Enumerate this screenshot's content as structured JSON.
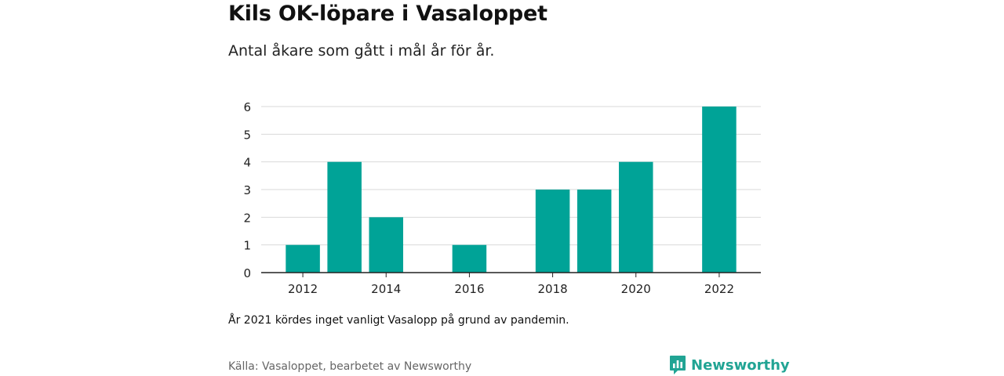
{
  "header": {
    "title": "Kils OK-löpare i Vasaloppet",
    "subtitle": "Antal åkare som gått i mål år för år."
  },
  "footer": {
    "note": "År 2021 kördes inget vanligt Vasalopp på grund av pandemin.",
    "source": "Källa: Vasaloppet, bearbetet av Newsworthy",
    "brand": "Newsworthy",
    "brand_icon": "newsworthy-logo-icon"
  },
  "colors": {
    "bar": "#00a397",
    "grid": "#d9d9d9",
    "axis": "#222222",
    "brand": "#21a494"
  },
  "chart_data": {
    "type": "bar",
    "title": "Kils OK-löpare i Vasaloppet",
    "subtitle": "Antal åkare som gått i mål år för år.",
    "x": [
      2012,
      2013,
      2014,
      2016,
      2018,
      2019,
      2020,
      2022
    ],
    "values": [
      1,
      4,
      2,
      1,
      3,
      3,
      4,
      6
    ],
    "x_ticks": [
      "2012",
      "2014",
      "2016",
      "2018",
      "2020",
      "2022"
    ],
    "y_ticks": [
      "0",
      "1",
      "2",
      "3",
      "4",
      "5",
      "6"
    ],
    "ylim": [
      0,
      6
    ],
    "xlim": [
      2011,
      2023
    ],
    "grid": true,
    "legend": "none"
  }
}
